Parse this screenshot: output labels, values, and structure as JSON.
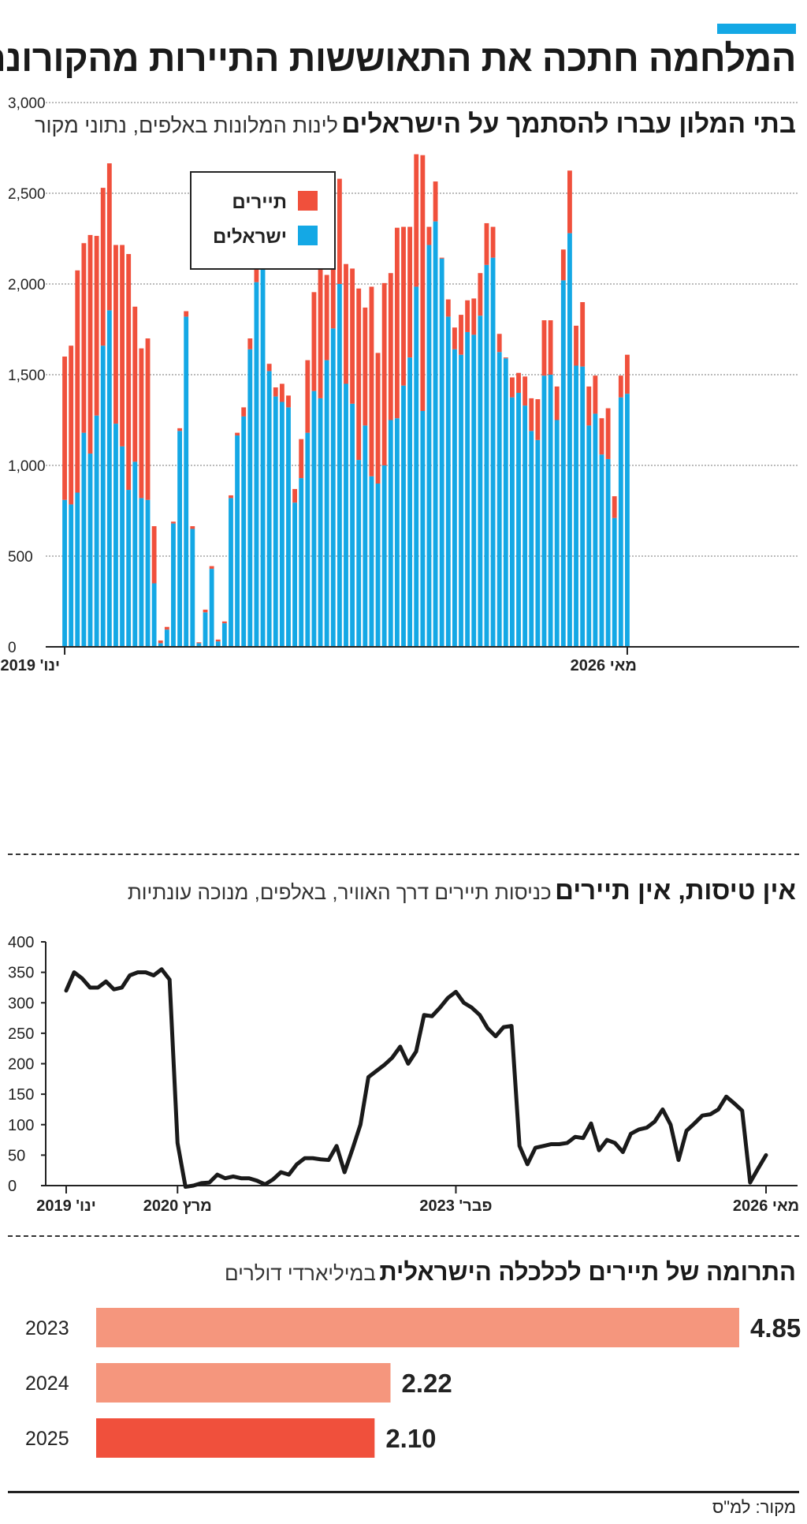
{
  "colors": {
    "accent": "#14a8e5",
    "tourists": "#f0503c",
    "israelis": "#14a8e5",
    "line": "#1a1a1a",
    "bar_light": "#f5967d",
    "bar_dark": "#f0503c"
  },
  "header": {
    "title": "המלחמה חתכה את התאוששות התיירות מהקורונה"
  },
  "section1": {
    "title": "בתי המלון עברו להסתמך על הישראלים",
    "subtitle": "לינות המלונות באלפים, נתוני מקור"
  },
  "section2": {
    "title": "אין טיסות, אין תיירים",
    "subtitle": "כניסות תיירים דרך האוויר, באלפים, מנוכה עונתיות"
  },
  "section3": {
    "title": "התרומה של תיירים לכלכלה הישראלית",
    "subtitle": "במיליארדי דולרים"
  },
  "source": "מקור: למ\"ס",
  "chart_data": [
    {
      "type": "bar",
      "stacked": true,
      "ylim": [
        0,
        3000
      ],
      "yticks": [
        "0",
        "500",
        "1,000",
        "1,500",
        "2,000",
        "2,500",
        "3,000"
      ],
      "ytick_values": [
        0,
        500,
        1000,
        1500,
        2000,
        2500,
        3000
      ],
      "x_labels": {
        "start": "ינו' 2019",
        "end": "מאי 2026"
      },
      "legend": {
        "position": "top-left",
        "entries": [
          "תיירים",
          "ישראלים"
        ]
      },
      "series": [
        {
          "name": "ישראלים",
          "values": [
            810,
            785,
            850,
            1180,
            1065,
            1275,
            1660,
            1855,
            1230,
            1105,
            865,
            1020,
            820,
            810,
            350,
            20,
            95,
            680,
            1190,
            1820,
            650,
            20,
            190,
            430,
            30,
            130,
            820,
            1165,
            1270,
            1640,
            2010,
            2165,
            1520,
            1380,
            1350,
            1320,
            795,
            930,
            1180,
            1410,
            1370,
            1580,
            1755,
            2000,
            1450,
            1340,
            1030,
            1220,
            940,
            900,
            1000,
            1250,
            1260,
            1440,
            1595,
            1985,
            1300,
            2215,
            2345,
            2140,
            1820,
            1640,
            1610,
            1735,
            1720,
            1825,
            2105,
            2145,
            1625,
            1590,
            1375,
            1400,
            1330,
            1190,
            1140,
            1495,
            1500,
            1250,
            2020,
            2280,
            1550,
            1545,
            1220,
            1285,
            1060,
            1035,
            710,
            1375,
            1395
          ]
        },
        {
          "name": "תיירים",
          "values": [
            790,
            875,
            1225,
            1045,
            1205,
            990,
            870,
            810,
            985,
            1110,
            1300,
            855,
            825,
            890,
            315,
            15,
            15,
            10,
            15,
            30,
            15,
            5,
            15,
            15,
            10,
            10,
            15,
            15,
            50,
            60,
            130,
            100,
            40,
            50,
            100,
            65,
            75,
            215,
            400,
            545,
            720,
            470,
            820,
            580,
            660,
            745,
            945,
            650,
            1045,
            720,
            1005,
            810,
            1050,
            875,
            720,
            730,
            1410,
            100,
            220,
            5,
            95,
            120,
            220,
            175,
            200,
            235,
            230,
            170,
            100,
            5,
            110,
            110,
            160,
            180,
            225,
            305,
            300,
            185,
            170,
            345,
            220,
            355,
            215,
            210,
            200,
            280,
            120,
            120,
            215
          ]
        }
      ]
    },
    {
      "type": "line",
      "ylim": [
        0,
        400
      ],
      "yticks": [
        "0",
        "50",
        "100",
        "150",
        "200",
        "250",
        "300",
        "350",
        "400"
      ],
      "ytick_values": [
        0,
        50,
        100,
        150,
        200,
        250,
        300,
        350,
        400
      ],
      "x_labels": [
        "ינו' 2019",
        "מרץ 2020",
        "פבר' 2023",
        "מאי 2026"
      ],
      "x_label_indices": [
        0,
        14,
        49,
        88
      ],
      "series": [
        {
          "name": "",
          "values": [
            320,
            350,
            340,
            325,
            325,
            335,
            322,
            325,
            345,
            350,
            350,
            345,
            355,
            338,
            70,
            -2,
            0,
            4,
            5,
            18,
            12,
            15,
            12,
            12,
            8,
            2,
            10,
            22,
            18,
            35,
            45,
            45,
            43,
            42,
            65,
            22,
            60,
            100,
            178,
            188,
            198,
            210,
            228,
            200,
            220,
            280,
            278,
            292,
            308,
            318,
            300,
            292,
            280,
            258,
            245,
            260,
            262,
            65,
            35,
            62,
            65,
            68,
            68,
            70,
            80,
            78,
            102,
            58,
            75,
            70,
            55,
            85,
            92,
            95,
            105,
            125,
            100,
            42,
            90,
            102,
            115,
            117,
            125,
            146,
            135,
            123,
            5,
            28,
            50
          ]
        }
      ]
    },
    {
      "type": "bar",
      "orientation": "horizontal",
      "categories": [
        "2023",
        "2024",
        "2025"
      ],
      "values": [
        4.85,
        2.22,
        2.1
      ],
      "value_labels": [
        "4.85",
        "2.22",
        "2.10"
      ]
    }
  ]
}
